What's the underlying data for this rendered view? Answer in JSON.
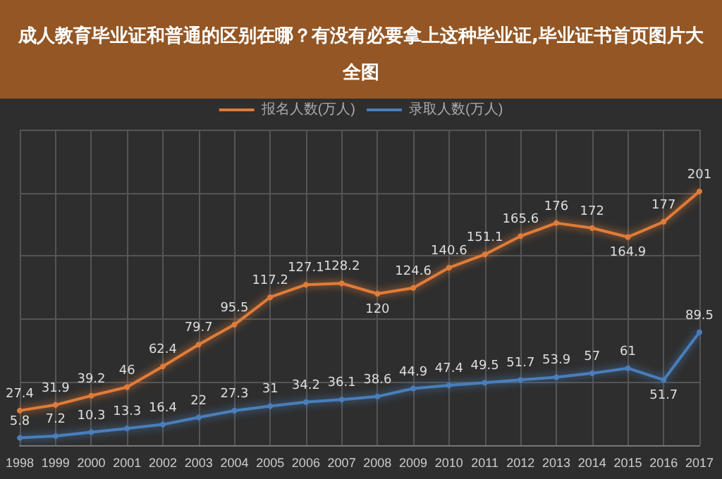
{
  "chart_data": {
    "type": "line",
    "title": "成人教育毕业证和普通的区别在哪？有没有必要拿上这种毕业证,毕业证书首页图片大全图",
    "categories": [
      "1998",
      "1999",
      "2000",
      "2001",
      "2002",
      "2003",
      "2004",
      "2005",
      "2006",
      "2007",
      "2008",
      "2009",
      "2010",
      "2011",
      "2012",
      "2013",
      "2014",
      "2015",
      "2016",
      "2017"
    ],
    "series": [
      {
        "name": "报名人数(万人)",
        "color": "#e07b39",
        "values": [
          27.4,
          31.9,
          39.2,
          46,
          62.4,
          79.7,
          95.5,
          117.2,
          127.1,
          128.2,
          120,
          124.6,
          140.6,
          151.1,
          165.6,
          176,
          172,
          164.9,
          177,
          201
        ]
      },
      {
        "name": "录取人数(万人)",
        "color": "#4a7ebb",
        "values": [
          5.8,
          7.2,
          10.3,
          13.3,
          16.4,
          22,
          27.3,
          31,
          34.2,
          36.1,
          38.6,
          44.9,
          47.4,
          49.5,
          51.7,
          53.9,
          57,
          61,
          51.7,
          89.5
        ]
      }
    ],
    "data_labels": true,
    "grid": true,
    "legend": "top",
    "marker": "circle",
    "line_style": "solid"
  }
}
